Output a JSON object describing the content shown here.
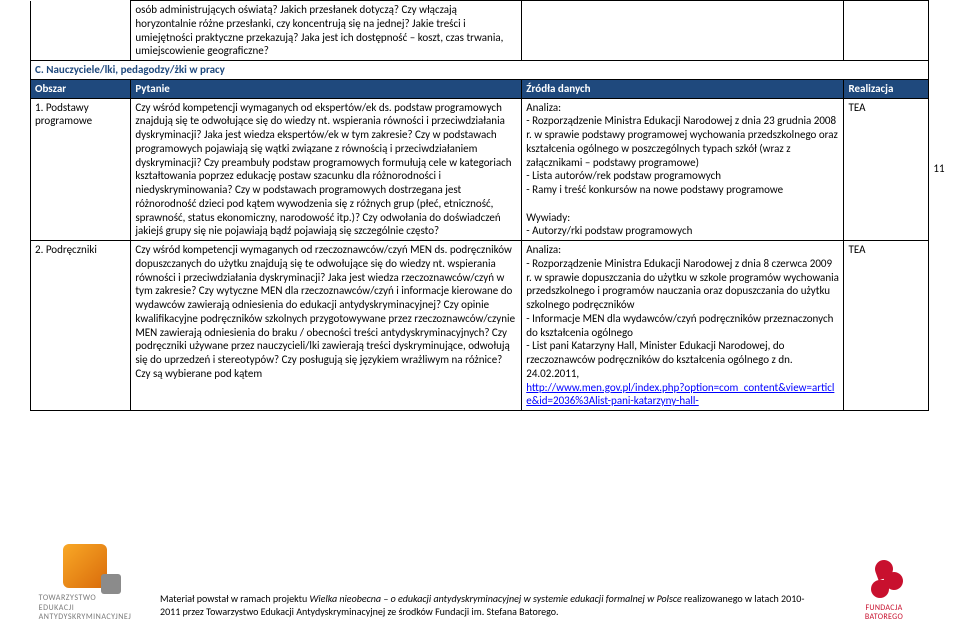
{
  "page_number": "11",
  "top_fragment_text": "osób administrujących oświatą? Jakich przesłanek dotyczą? Czy włączają horyzontalnie różne przesłanki, czy koncentrują się na jednej? Jakie treści i umiejętności praktyczne przekazują? Jaka jest ich dostępność – koszt, czas trwania, umiejscowienie geograficzne?",
  "section_heading": "C. Nauczyciele/lki, pedagodzy/żki w pracy",
  "headers": {
    "obszar": "Obszar",
    "pytanie": "Pytanie",
    "zrodla": "Źródła danych",
    "realizacja": "Realizacja"
  },
  "rows": [
    {
      "obszar": "1. Podstawy programowe",
      "pytanie": "Czy wśród kompetencji wymaganych od ekspertów/ek ds. podstaw programowych znajdują się te odwołujące się do wiedzy nt. wspierania równości i przeciwdziałania dyskryminacji? Jaka jest wiedza ekspertów/ek w tym zakresie? Czy w podstawach programowych pojawiają się wątki związane z równością i przeciwdziałaniem dyskryminacji? Czy preambuły podstaw programowych formułują cele w kategoriach kształtowania poprzez edukację postaw szacunku dla różnorodności i niedyskryminowania? Czy w podstawach programowych dostrzegana jest różnorodność dzieci pod kątem wywodzenia się z różnych grup (płeć, etniczność, sprawność, status ekonomiczny, narodowość itp.)? Czy odwołania do doświadczeń jakiejś grupy się nie pojawiają bądź pojawiają się szczególnie często?",
      "zrodla": "Analiza:\n- Rozporządzenie Ministra Edukacji Narodowej z dnia 23 grudnia 2008 r. w sprawie podstawy programowej wychowania przedszkolnego oraz kształcenia ogólnego w poszczególnych typach szkół (wraz z załącznikami – podstawy programowe)\n- Lista autorów/rek podstaw programowych\n- Ramy i treść konkursów na nowe podstawy programowe\n\nWywiady:\n- Autorzy/rki podstaw programowych",
      "realizacja": "TEA"
    },
    {
      "obszar": "2. Podręczniki",
      "pytanie": "Czy wśród kompetencji wymaganych od rzeczoznawców/czyń MEN ds. podręczników dopuszczanych do użytku znajdują się te odwołujące się do wiedzy nt. wspierania równości i przeciwdziałania dyskryminacji? Jaka jest wiedza rzeczoznawców/czyń w tym zakresie? Czy wytyczne MEN dla rzeczoznawców/czyń i informacje kierowane do wydawców zawierają odniesienia do edukacji antydyskryminacyjnej? Czy opinie kwalifikacyjne podręczników szkolnych przygotowywane przez rzeczoznawców/czynie MEN zawierają odniesienia do braku / obecności treści antydyskryminacyjnych? Czy podręczniki używane przez nauczycieli/lki zawierają treści dyskryminujące, odwołują się do uprzedzeń i stereotypów? Czy posługują się językiem wrażliwym na różnice? Czy są wybierane pod kątem",
      "zrodla_pre": "Analiza:\n- Rozporządzenie Ministra Edukacji Narodowej z dnia 8 czerwca 2009 r. w sprawie dopuszczania do użytku w szkole programów wychowania przedszkolnego i programów nauczania oraz dopuszczania do użytku szkolnego podręczników\n- Informacje MEN dla wydawców/czyń podręczników przeznaczonych do kształcenia ogólnego\n- List pani Katarzyny Hall, Minister Edukacji Narodowej, do rzeczoznawców podręczników do kształcenia ogólnego z dn. 24.02.2011,",
      "link_text": "http://www.men.gov.pl/index.php?option=com_content&view=article&id=2036%3Alist-pani-katarzyny-hall-",
      "realizacja": "TEA"
    }
  ],
  "footer": {
    "left_logo_lines": [
      "TOWARZYSTWO",
      "EDUKACJI",
      "ANTYDYSKRYMINACYJNEJ"
    ],
    "center_prefix": "Materiał powstał w ramach projektu ",
    "center_italic": "Wielka nieobecna – o edukacji antydyskryminacyjnej w systemie edukacji formalnej w Polsce",
    "center_suffix": " realizowanego w latach 2010-2011 przez Towarzystwo Edukacji Antydyskryminacyjnej ze środków Fundacji im. Stefana Batorego.",
    "right_logo_lines": [
      "FUNDACJA",
      "BATOREGO"
    ]
  },
  "styling": {
    "header_bg": "#1f497d",
    "header_fg": "#ffffff",
    "heading_color": "#1f497d",
    "link_color": "#0000ff",
    "border_color": "#000000",
    "body_font_size": 11,
    "heading_font_size": 15
  }
}
